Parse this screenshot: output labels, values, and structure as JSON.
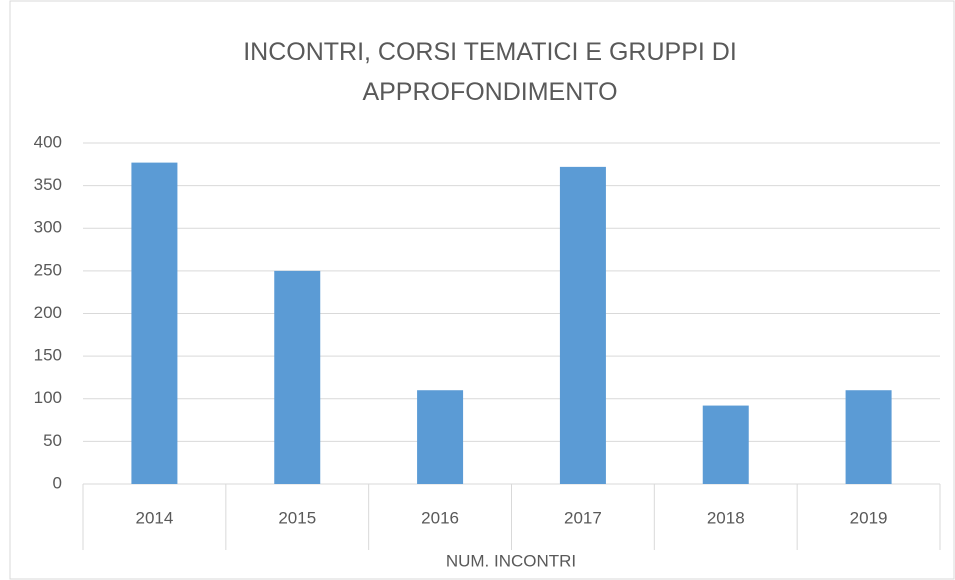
{
  "chart_data": {
    "type": "bar",
    "title": "INCONTRI, CORSI TEMATICI E GRUPPI DI APPROFONDIMENTO",
    "xlabel": "NUM. INCONTRI",
    "categories": [
      "2014",
      "2015",
      "2016",
      "2017",
      "2018",
      "2019"
    ],
    "values": [
      377,
      250,
      110,
      372,
      92,
      110
    ],
    "color": "#5b9bd5",
    "ylim": [
      0,
      400
    ],
    "yticks": [
      0,
      50,
      100,
      150,
      200,
      250,
      300,
      350,
      400
    ],
    "grid": true
  }
}
